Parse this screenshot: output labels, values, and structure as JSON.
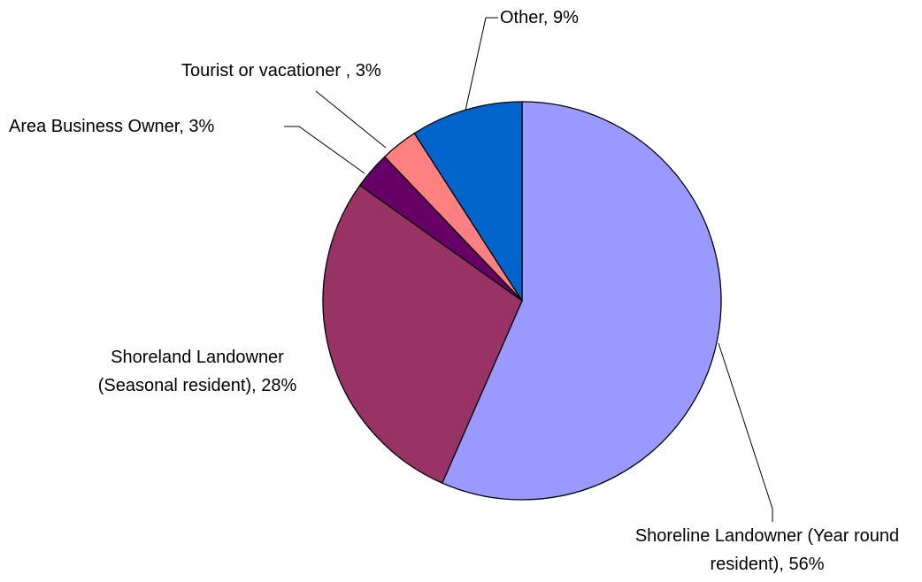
{
  "chart_data": {
    "type": "pie",
    "labels": [
      "Shoreline Landowner (Year round resident), 56%",
      "Shoreland Landowner (Seasonal resident), 28%",
      "Area Business Owner, 3%",
      "Tourist or vacationer , 3%",
      "Other, 9%"
    ],
    "values": [
      56,
      28,
      3,
      3,
      9
    ],
    "colors": [
      "#9999ff",
      "#993366",
      "#660066",
      "#ff8080",
      "#0066cc"
    ]
  }
}
